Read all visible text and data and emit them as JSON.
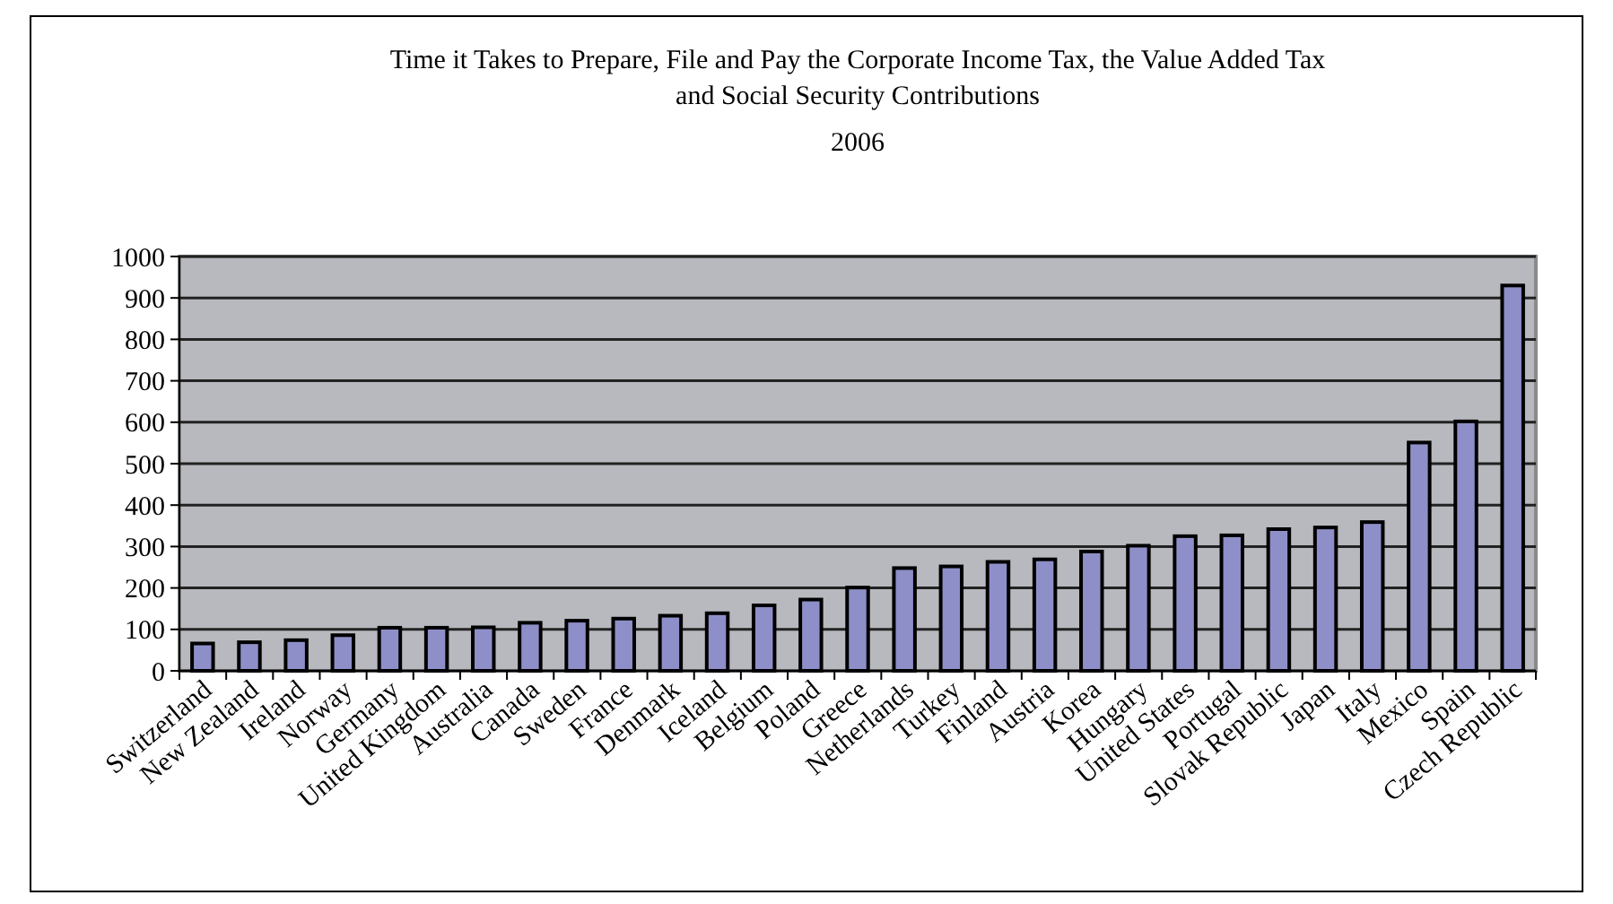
{
  "chart_data": {
    "type": "bar",
    "title": "Time it Takes to Prepare, File and Pay the Corporate Income Tax, the Value Added Tax and Social Security Contributions",
    "subtitle": "2006",
    "categories": [
      "Switzerland",
      "New Zealand",
      "Ireland",
      "Norway",
      "Germany",
      "United Kingdom",
      "Australia",
      "Canada",
      "Sweden",
      "France",
      "Denmark",
      "Iceland",
      "Belgium",
      "Poland",
      "Greece",
      "Netherlands",
      "Turkey",
      "Finland",
      "Austria",
      "Korea",
      "Hungary",
      "United States",
      "Portugal",
      "Slovak Republic",
      "Japan",
      "Italy",
      "Mexico",
      "Spain",
      "Czech Republic"
    ],
    "values": [
      66,
      69,
      74,
      86,
      104,
      104,
      105,
      116,
      121,
      126,
      133,
      139,
      158,
      172,
      201,
      248,
      252,
      263,
      269,
      288,
      302,
      325,
      327,
      342,
      346,
      359,
      551,
      602,
      930
    ],
    "color": "#8e8fc8",
    "ylim": [
      0,
      1000
    ],
    "yticks": [
      0,
      100,
      200,
      300,
      400,
      500,
      600,
      700,
      800,
      900,
      1000
    ],
    "grid": "y"
  }
}
